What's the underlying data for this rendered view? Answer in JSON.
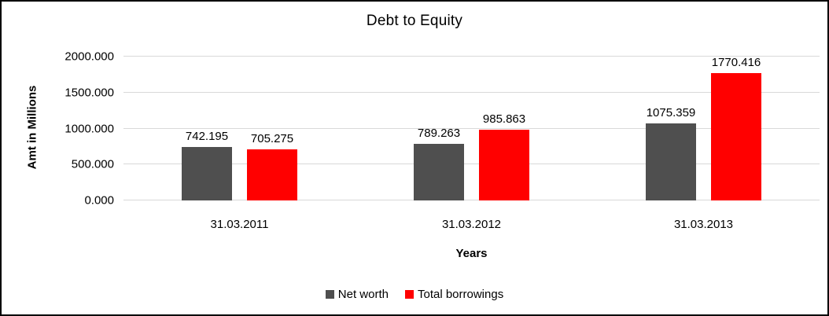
{
  "chart_data": {
    "type": "bar",
    "title": "Debt to Equity",
    "xlabel": "Years",
    "ylabel": "Amt in Millions",
    "categories": [
      "31.03.2011",
      "31.03.2012",
      "31.03.2013"
    ],
    "series": [
      {
        "name": "Net worth",
        "color": "#4f4f4f",
        "values": [
          742.195,
          789.263,
          1075.359
        ]
      },
      {
        "name": "Total borrowings",
        "color": "#ff0000",
        "values": [
          705.275,
          985.863,
          1770.416
        ]
      }
    ],
    "ylim": [
      0,
      2000
    ],
    "ytick_step": 500,
    "tick_decimals": 3,
    "grid": true,
    "legend_position": "bottom",
    "gridline_color": "#d9d9d9",
    "frame_border_color": "#000000"
  }
}
